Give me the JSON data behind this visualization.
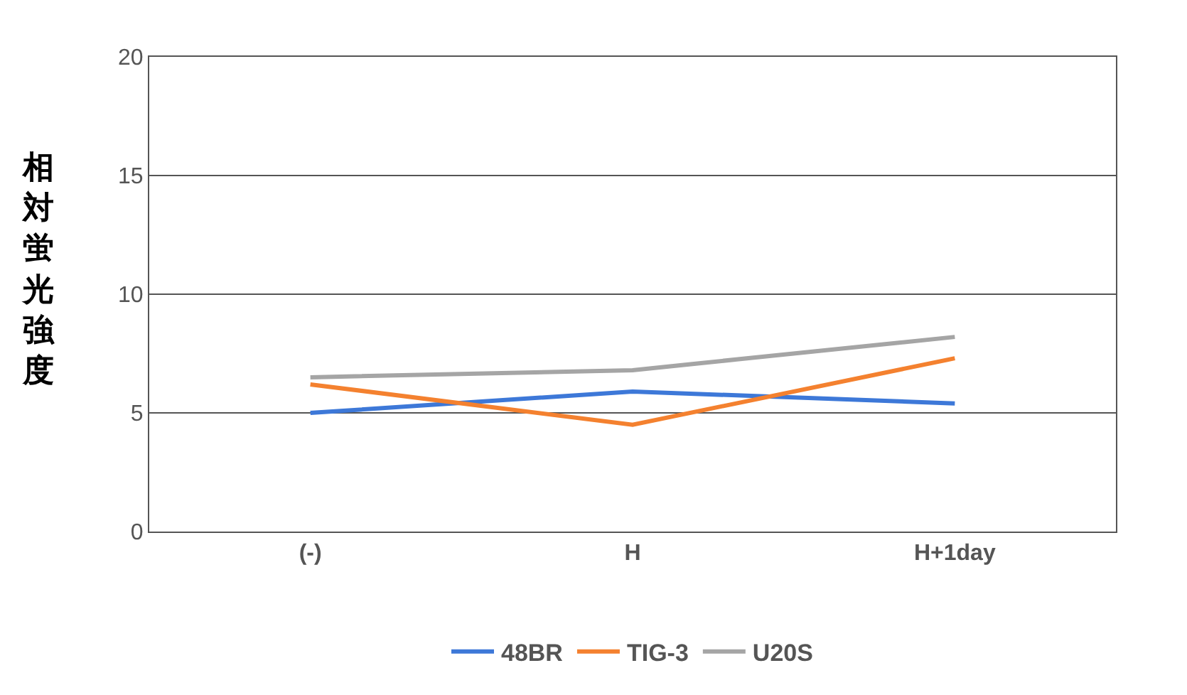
{
  "chart_data": {
    "type": "line",
    "ylabel": "相対蛍光強度",
    "categories": [
      "(-)",
      "H",
      "H+1day"
    ],
    "series": [
      {
        "name": "48BR",
        "color": "#3d78d8",
        "values": [
          5.0,
          5.9,
          5.4
        ]
      },
      {
        "name": "TIG-3",
        "color": "#f4812f",
        "values": [
          6.2,
          4.5,
          7.3
        ]
      },
      {
        "name": "U20S",
        "color": "#a5a5a5",
        "values": [
          6.5,
          6.8,
          8.2
        ]
      }
    ],
    "ylim": [
      0,
      20
    ],
    "yticks": [
      0,
      5,
      10,
      15,
      20
    ],
    "grid": "y",
    "legend": "bottom",
    "marker": "none",
    "line_style": "solid"
  }
}
